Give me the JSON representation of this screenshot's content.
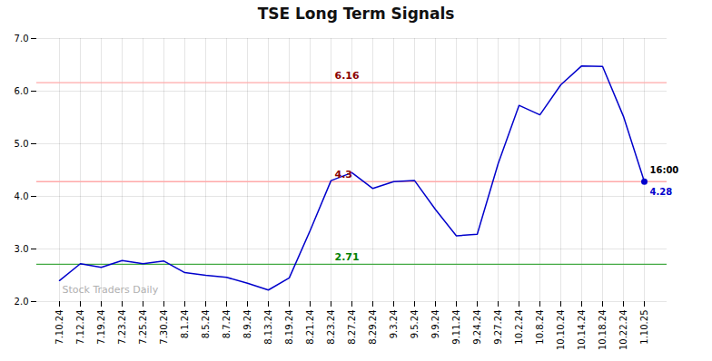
{
  "chart_data": {
    "type": "line",
    "title": "TSE Long Term Signals",
    "categories": [
      "7.10.24",
      "7.12.24",
      "7.19.24",
      "7.23.24",
      "7.25.24",
      "7.30.24",
      "8.1.24",
      "8.5.24",
      "8.7.24",
      "8.9.24",
      "8.13.24",
      "8.19.24",
      "8.21.24",
      "8.23.24",
      "8.27.24",
      "8.29.24",
      "9.3.24",
      "9.5.24",
      "9.9.24",
      "9.11.24",
      "9.24.24",
      "9.27.24",
      "10.2.24",
      "10.8.24",
      "10.10.24",
      "10.14.24",
      "10.18.24",
      "10.22.24",
      "1.10.25"
    ],
    "values": [
      2.4,
      2.72,
      2.65,
      2.78,
      2.72,
      2.77,
      2.55,
      2.5,
      2.46,
      2.35,
      2.22,
      2.45,
      3.35,
      4.3,
      4.45,
      4.15,
      4.28,
      4.3,
      3.75,
      3.25,
      3.28,
      4.62,
      5.73,
      5.55,
      6.12,
      6.48,
      6.47,
      5.52,
      4.28
    ],
    "color": "#0000cc",
    "ylim": [
      2.0,
      7.0
    ],
    "yticks": [
      2,
      3,
      4,
      5,
      6,
      7
    ],
    "grid": true,
    "hlines": [
      {
        "value": 2.71,
        "label": "2.71",
        "color": "#44aa44",
        "label_color": "green"
      },
      {
        "value": 4.28,
        "label": "4.3",
        "color": "#ffaaaa",
        "label_color": "darkred"
      },
      {
        "value": 6.16,
        "label": "6.16",
        "color": "#ffaaaa",
        "label_color": "darkred"
      }
    ],
    "annotations": [
      {
        "text": "16:00",
        "color": "black"
      },
      {
        "text": "4.28",
        "color": "#0000cc"
      },
      {
        "text": "Stock Traders Daily",
        "color": "#b0b0b0"
      }
    ]
  }
}
